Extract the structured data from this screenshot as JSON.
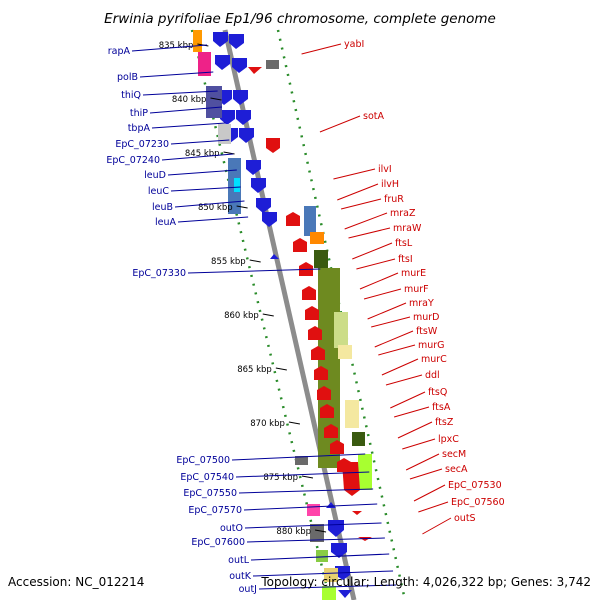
{
  "title": "Erwinia pyrifoliae Ep1/96 chromosome, complete genome",
  "footer": {
    "accession": "Accession: NC_012214",
    "summary": "Topology: circular; Length: 4,026,322 bp; Genes: 3,742"
  },
  "colors": {
    "left_label": "#000099",
    "right_label": "#cc0000",
    "backbone": "#8c8c8c",
    "tick": "#2a8c2a",
    "forward_gene": "#1e1ed6",
    "reverse_gene": "#e01010"
  },
  "kbp_ticks": [
    "835 kbp",
    "840 kbp",
    "845 kbp",
    "850 kbp",
    "855 kbp",
    "860 kbp",
    "865 kbp",
    "870 kbp",
    "875 kbp",
    "880 kbp"
  ],
  "left_genes": [
    "rapA",
    "polB",
    "thiQ",
    "thiP",
    "tbpA",
    "EpC_07230",
    "EpC_07240",
    "leuD",
    "leuC",
    "leuB",
    "leuA",
    "EpC_07330",
    "EpC_07500",
    "EpC_07540",
    "EpC_07550",
    "EpC_07570",
    "outO",
    "EpC_07600",
    "outL",
    "outK",
    "outJ"
  ],
  "right_genes": [
    "yabI",
    "sotA",
    "ilvI",
    "ilvH",
    "fruR",
    "mraZ",
    "mraW",
    "ftsL",
    "ftsI",
    "murE",
    "murF",
    "mraY",
    "murD",
    "ftsW",
    "murG",
    "murC",
    "ddl",
    "ftsQ",
    "ftsA",
    "ftsZ",
    "lpxC",
    "secM",
    "secA",
    "EpC_07530",
    "EpC_07560",
    "outS"
  ]
}
